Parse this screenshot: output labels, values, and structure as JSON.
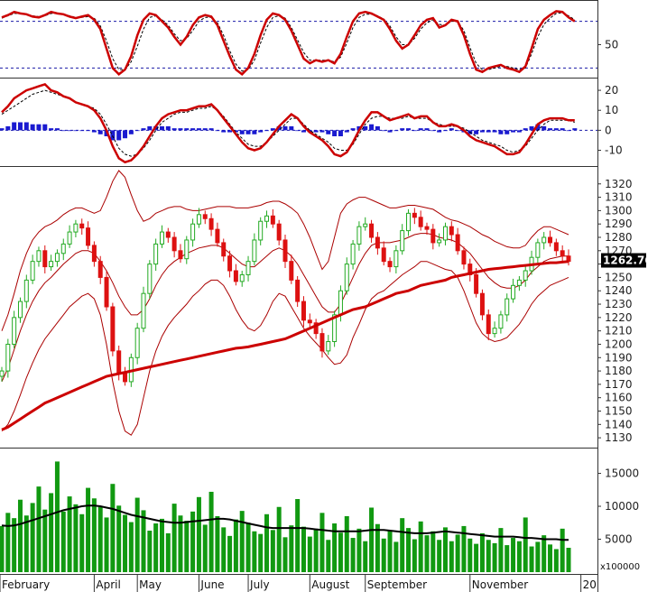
{
  "colors": {
    "up": "#22aa22",
    "down": "#dd1111",
    "ma": "#cc0000",
    "band": "#aa0000",
    "volume": "#119911",
    "volume_ma": "#000000",
    "stoch_main": "#cc0000",
    "ref_line": "#1a1aa8",
    "hist": "#1a1ad0",
    "price_box": "#000000",
    "price_box_text": "#22ff22"
  },
  "chart_data": [
    {
      "type": "line",
      "panel": "stochastic",
      "ylim": [
        10,
        105
      ],
      "yticks": [
        "50"
      ],
      "reference_lines": [
        80,
        20
      ],
      "series": [
        {
          "values": [
            85,
            88,
            92,
            90,
            89,
            86,
            85,
            88,
            92,
            90,
            89,
            86,
            84,
            86,
            88,
            82,
            70,
            45,
            20,
            12,
            18,
            35,
            62,
            82,
            90,
            88,
            80,
            72,
            60,
            50,
            60,
            75,
            85,
            88,
            86,
            75,
            55,
            35,
            18,
            12,
            20,
            38,
            62,
            82,
            90,
            88,
            82,
            68,
            50,
            32,
            26,
            30,
            28,
            30,
            26,
            38,
            60,
            80,
            90,
            92,
            90,
            86,
            82,
            70,
            55,
            45,
            50,
            62,
            75,
            82,
            84,
            72,
            75,
            82,
            80,
            62,
            38,
            18,
            15,
            20,
            22,
            24,
            20,
            18,
            15,
            22,
            45,
            70,
            82,
            88,
            93,
            92,
            85,
            80
          ]
        },
        {
          "values": [
            84,
            87,
            90,
            90,
            89,
            87,
            86,
            87,
            90,
            90,
            89,
            87,
            85,
            85,
            86,
            84,
            74,
            55,
            32,
            18,
            18,
            28,
            48,
            70,
            85,
            87,
            82,
            75,
            64,
            55,
            58,
            68,
            80,
            85,
            85,
            78,
            62,
            42,
            25,
            16,
            18,
            30,
            52,
            72,
            85,
            87,
            84,
            72,
            56,
            40,
            30,
            30,
            30,
            30,
            28,
            34,
            52,
            72,
            85,
            89,
            89,
            87,
            83,
            74,
            60,
            50,
            50,
            58,
            70,
            78,
            82,
            76,
            75,
            80,
            80,
            68,
            46,
            26,
            18,
            18,
            20,
            22,
            22,
            20,
            18,
            20,
            38,
            60,
            76,
            84,
            90,
            91,
            87,
            82
          ]
        }
      ]
    },
    {
      "type": "line",
      "panel": "macd",
      "ylim": [
        -17,
        25
      ],
      "yticks": [
        "20",
        "10",
        "0",
        "-10"
      ],
      "series": [
        {
          "values": [
            9,
            12,
            16,
            18,
            20,
            21,
            22,
            23,
            20,
            19,
            17,
            16,
            14,
            13,
            12,
            10,
            6,
            0,
            -8,
            -14,
            -16,
            -15,
            -12,
            -8,
            -3,
            2,
            6,
            8,
            9,
            10,
            10,
            11,
            12,
            12,
            13,
            10,
            6,
            2,
            -2,
            -6,
            -9,
            -10,
            -9,
            -6,
            -2,
            2,
            5,
            8,
            6,
            2,
            -1,
            -3,
            -5,
            -8,
            -12,
            -13,
            -11,
            -6,
            0,
            5,
            9,
            9,
            7,
            5,
            6,
            7,
            8,
            6,
            7,
            7,
            4,
            2,
            2,
            3,
            2,
            0,
            -3,
            -5,
            -6,
            -7,
            -8,
            -10,
            -12,
            -12,
            -11,
            -7,
            -2,
            3,
            5,
            6,
            6,
            6,
            5,
            5
          ]
        },
        {
          "values": [
            8,
            10,
            12,
            14,
            16,
            18,
            19,
            20,
            19,
            18,
            17,
            16,
            14,
            13,
            12,
            11,
            8,
            3,
            -3,
            -9,
            -12,
            -13,
            -12,
            -9,
            -5,
            0,
            4,
            6,
            8,
            9,
            9,
            10,
            11,
            11,
            12,
            10,
            7,
            3,
            -1,
            -4,
            -7,
            -8,
            -8,
            -6,
            -3,
            0,
            3,
            6,
            6,
            3,
            0,
            -2,
            -4,
            -6,
            -9,
            -10,
            -10,
            -7,
            -2,
            3,
            6,
            7,
            7,
            6,
            6,
            6,
            7,
            6,
            6,
            6,
            4,
            3,
            2,
            2,
            2,
            1,
            -1,
            -3,
            -5,
            -6,
            -7,
            -8,
            -10,
            -11,
            -10,
            -8,
            -4,
            0,
            3,
            5,
            5,
            5,
            5,
            4
          ]
        }
      ],
      "histogram": [
        1,
        2,
        4,
        4,
        4,
        3,
        3,
        3,
        1,
        1,
        0,
        0,
        0,
        0,
        0,
        -1,
        -2,
        -3,
        -5,
        -5,
        -4,
        -2,
        0,
        1,
        2,
        2,
        2,
        2,
        1,
        1,
        1,
        1,
        1,
        1,
        1,
        0,
        -1,
        -1,
        -1,
        -2,
        -2,
        -2,
        -1,
        0,
        1,
        2,
        2,
        2,
        0,
        -1,
        -1,
        -1,
        -1,
        -2,
        -3,
        -3,
        -1,
        1,
        2,
        2,
        3,
        2,
        0,
        -1,
        0,
        1,
        1,
        0,
        1,
        1,
        0,
        -1,
        0,
        1,
        0,
        -1,
        -2,
        -2,
        -1,
        -1,
        -1,
        -2,
        -2,
        -1,
        -1,
        1,
        2,
        3,
        2,
        1,
        1,
        1,
        0,
        1
      ]
    },
    {
      "type": "line",
      "panel": "price",
      "ylim": [
        1124,
        1332
      ],
      "yticks": [
        "1320",
        "1310",
        "1300",
        "1290",
        "1280",
        "1270",
        "1260",
        "1250",
        "1240",
        "1230",
        "1220",
        "1210",
        "1200",
        "1190",
        "1180",
        "1170",
        "1160",
        "1150",
        "1140",
        "1130"
      ],
      "last_price": "1262.760",
      "close": [
        1180,
        1200,
        1220,
        1232,
        1248,
        1262,
        1270,
        1258,
        1262,
        1268,
        1275,
        1284,
        1290,
        1287,
        1274,
        1262,
        1250,
        1228,
        1195,
        1178,
        1172,
        1190,
        1212,
        1238,
        1260,
        1275,
        1284,
        1280,
        1270,
        1264,
        1278,
        1290,
        1297,
        1294,
        1286,
        1276,
        1266,
        1255,
        1247,
        1252,
        1262,
        1278,
        1292,
        1296,
        1290,
        1278,
        1262,
        1248,
        1232,
        1218,
        1216,
        1208,
        1195,
        1202,
        1222,
        1240,
        1260,
        1275,
        1288,
        1290,
        1280,
        1272,
        1262,
        1258,
        1270,
        1285,
        1298,
        1295,
        1288,
        1286,
        1276,
        1278,
        1288,
        1282,
        1270,
        1260,
        1252,
        1238,
        1222,
        1208,
        1212,
        1222,
        1234,
        1244,
        1248,
        1255,
        1265,
        1276,
        1280,
        1276,
        1270,
        1266,
        1262
      ],
      "ma200": [
        1136,
        1138,
        1141,
        1144,
        1147,
        1150,
        1153,
        1156,
        1158,
        1160,
        1162,
        1164,
        1166,
        1168,
        1170,
        1172,
        1174,
        1176,
        1177,
        1178,
        1179,
        1180,
        1181,
        1182,
        1183,
        1184,
        1185,
        1186,
        1187,
        1188,
        1189,
        1190,
        1191,
        1192,
        1193,
        1194,
        1195,
        1196,
        1197,
        1197.5,
        1198,
        1199,
        1200,
        1201,
        1202,
        1203,
        1204,
        1206,
        1208,
        1210,
        1212,
        1214,
        1216,
        1218,
        1220,
        1222,
        1224,
        1226,
        1227,
        1228,
        1230,
        1232,
        1234,
        1236,
        1238,
        1239,
        1240,
        1242,
        1244,
        1245,
        1246,
        1247,
        1248,
        1250,
        1251,
        1252,
        1253,
        1254,
        1255,
        1256,
        1256.5,
        1257,
        1257.5,
        1258,
        1258.5,
        1259,
        1259.5,
        1260,
        1260.5,
        1261,
        1261,
        1261.5,
        1262
      ],
      "bb_upper": [
        1210,
        1222,
        1238,
        1255,
        1268,
        1278,
        1284,
        1288,
        1290,
        1293,
        1297,
        1300,
        1302,
        1302,
        1300,
        1298,
        1300,
        1310,
        1322,
        1330,
        1325,
        1312,
        1300,
        1292,
        1294,
        1298,
        1300,
        1302,
        1303,
        1303,
        1301,
        1300,
        1300,
        1301,
        1302,
        1303,
        1303,
        1303,
        1302,
        1302,
        1302,
        1303,
        1304,
        1306,
        1307,
        1307,
        1305,
        1302,
        1298,
        1290,
        1280,
        1268,
        1256,
        1262,
        1280,
        1298,
        1305,
        1308,
        1310,
        1310,
        1308,
        1306,
        1304,
        1302,
        1302,
        1303,
        1304,
        1304,
        1303,
        1302,
        1301,
        1298,
        1295,
        1293,
        1292,
        1290,
        1288,
        1285,
        1282,
        1280,
        1277,
        1275,
        1273,
        1272,
        1272,
        1274,
        1280,
        1285,
        1288,
        1288,
        1286,
        1284,
        1282
      ],
      "bb_mid": [
        1172,
        1182,
        1196,
        1210,
        1222,
        1232,
        1240,
        1246,
        1250,
        1255,
        1260,
        1264,
        1268,
        1270,
        1270,
        1268,
        1262,
        1255,
        1246,
        1236,
        1228,
        1222,
        1222,
        1226,
        1234,
        1244,
        1252,
        1258,
        1262,
        1265,
        1268,
        1270,
        1272,
        1273,
        1274,
        1274,
        1272,
        1268,
        1264,
        1260,
        1258,
        1258,
        1262,
        1266,
        1270,
        1272,
        1270,
        1266,
        1260,
        1252,
        1244,
        1236,
        1228,
        1224,
        1224,
        1230,
        1240,
        1250,
        1260,
        1268,
        1274,
        1276,
        1276,
        1276,
        1277,
        1278,
        1280,
        1282,
        1283,
        1283,
        1282,
        1280,
        1279,
        1278,
        1276,
        1272,
        1268,
        1262,
        1256,
        1250,
        1246,
        1243,
        1242,
        1242,
        1244,
        1248,
        1254,
        1258,
        1262,
        1264,
        1265,
        1266,
        1266
      ],
      "bb_lower": [
        1135,
        1140,
        1150,
        1162,
        1175,
        1186,
        1196,
        1204,
        1210,
        1216,
        1222,
        1228,
        1232,
        1236,
        1238,
        1234,
        1222,
        1200,
        1172,
        1150,
        1135,
        1132,
        1140,
        1160,
        1180,
        1195,
        1206,
        1214,
        1220,
        1225,
        1230,
        1236,
        1240,
        1245,
        1248,
        1248,
        1244,
        1236,
        1226,
        1218,
        1212,
        1210,
        1214,
        1222,
        1232,
        1238,
        1236,
        1228,
        1220,
        1212,
        1206,
        1201,
        1196,
        1190,
        1185,
        1186,
        1192,
        1205,
        1215,
        1226,
        1234,
        1238,
        1240,
        1244,
        1248,
        1252,
        1255,
        1258,
        1262,
        1262,
        1260,
        1258,
        1256,
        1255,
        1250,
        1240,
        1228,
        1216,
        1208,
        1204,
        1202,
        1203,
        1205,
        1210,
        1215,
        1222,
        1230,
        1236,
        1240,
        1244,
        1246,
        1248,
        1250
      ]
    },
    {
      "type": "bar",
      "panel": "volume",
      "ylim": [
        0,
        18500
      ],
      "yticks": [
        "15000",
        "10000",
        "5000"
      ],
      "unit_label": "x100000",
      "values": [
        7000,
        9000,
        8200,
        11000,
        8600,
        10500,
        13000,
        9500,
        12000,
        16800,
        9200,
        11500,
        10300,
        8800,
        12800,
        11200,
        9900,
        8300,
        13400,
        10100,
        8700,
        7600,
        11300,
        9400,
        6300,
        7400,
        8100,
        5900,
        10400,
        8600,
        7800,
        9200,
        11400,
        7200,
        12200,
        8500,
        6800,
        5500,
        8000,
        9300,
        7500,
        6200,
        5800,
        8800,
        6400,
        9900,
        5300,
        7100,
        11100,
        6900,
        5400,
        6600,
        9000,
        4900,
        7400,
        6000,
        8500,
        5200,
        6600,
        4700,
        9800,
        7300,
        5100,
        6300,
        4600,
        8200,
        6700,
        5000,
        7700,
        5600,
        6200,
        4900,
        6800,
        4700,
        5700,
        7000,
        5100,
        4300,
        5900,
        4900,
        4400,
        6700,
        4100,
        5200,
        4700,
        8300,
        3900,
        4600,
        5600,
        4200,
        3500,
        6600,
        3700
      ],
      "ma": [
        7100,
        7000,
        7100,
        7300,
        7600,
        7900,
        8200,
        8500,
        8800,
        9100,
        9400,
        9600,
        9800,
        10000,
        10100,
        10100,
        10000,
        9800,
        9600,
        9300,
        9000,
        8700,
        8500,
        8300,
        8100,
        7900,
        7700,
        7600,
        7500,
        7500,
        7600,
        7700,
        7800,
        7900,
        8000,
        8100,
        8100,
        8000,
        7800,
        7600,
        7400,
        7200,
        7000,
        6800,
        6700,
        6700,
        6700,
        6700,
        6700,
        6700,
        6600,
        6500,
        6400,
        6300,
        6200,
        6200,
        6200,
        6200,
        6200,
        6300,
        6400,
        6400,
        6400,
        6300,
        6200,
        6100,
        6000,
        5900,
        5900,
        5900,
        6000,
        6100,
        6200,
        6100,
        6000,
        5900,
        5800,
        5700,
        5600,
        5500,
        5400,
        5400,
        5400,
        5400,
        5300,
        5200,
        5200,
        5100,
        5000,
        5000,
        5000,
        4900,
        4900
      ]
    }
  ],
  "x_axis": {
    "months": [
      {
        "label": "February",
        "index": 0
      },
      {
        "label": "April",
        "index": 15
      },
      {
        "label": "May",
        "index": 22
      },
      {
        "label": "June",
        "index": 32
      },
      {
        "label": "July",
        "index": 40
      },
      {
        "label": "August",
        "index": 50
      },
      {
        "label": "September",
        "index": 59
      },
      {
        "label": "November",
        "index": 76
      },
      {
        "label": "20",
        "index": 94
      }
    ]
  }
}
